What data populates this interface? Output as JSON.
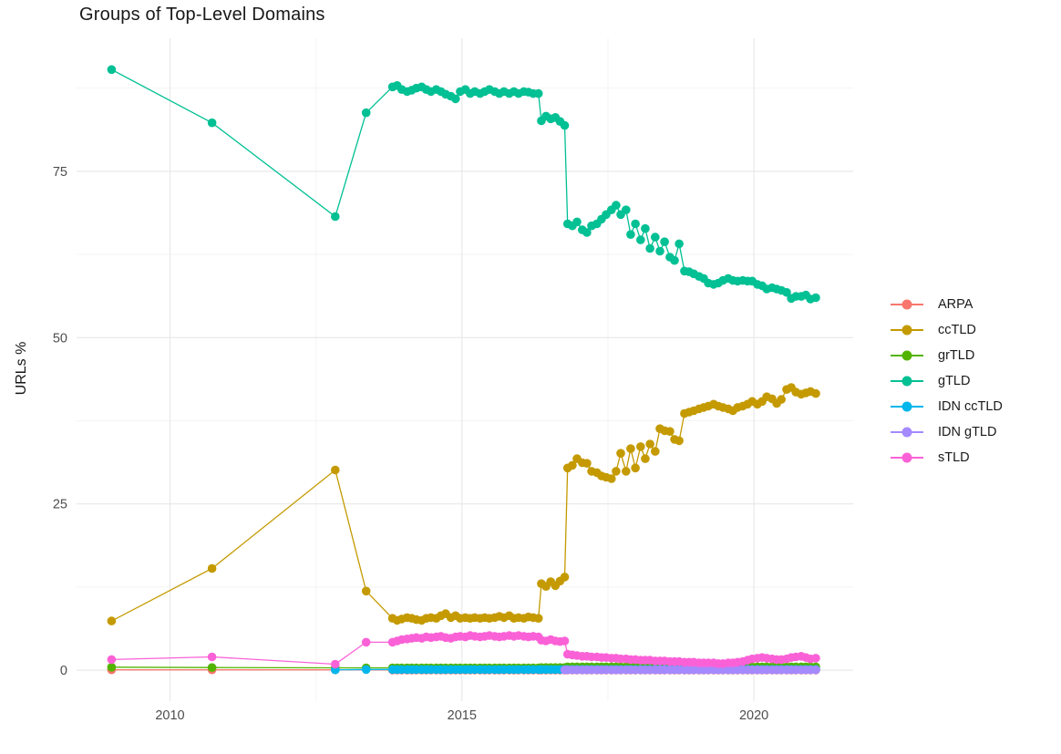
{
  "chart_data": {
    "type": "line",
    "title": "Groups of Top-Level Domains",
    "xlabel": "",
    "ylabel": "URLs %",
    "grid": true,
    "legend_position": "right",
    "xlim": [
      2008.4,
      2021.7
    ],
    "ylim": [
      -4.65,
      95.0
    ],
    "x_ticks": {
      "values": [
        2010,
        2015,
        2020
      ],
      "labels": [
        "2010",
        "2015",
        "2020"
      ]
    },
    "x_minor": [
      2012.5,
      2017.5
    ],
    "y_ticks": {
      "values": [
        0,
        25,
        50,
        75
      ],
      "labels": [
        "0",
        "25",
        "50",
        "75"
      ]
    },
    "y_minor": [
      12.5,
      37.5,
      62.5,
      87.5
    ],
    "colors": {
      "grid_major": "#e7e7e7",
      "grid_minor": "#f3f3f3",
      "axis_text": "#4d4d4d",
      "title_text": "#181818"
    },
    "sample_x": {
      "early": [
        2013.81,
        2013.89,
        2013.97,
        2014.06,
        2014.14,
        2014.22,
        2014.31,
        2014.39,
        2014.47,
        2014.56,
        2014.64,
        2014.72,
        2014.81,
        2014.89,
        2014.97,
        2015.06,
        2015.14,
        2015.22,
        2015.31,
        2015.39,
        2015.47,
        2015.56,
        2015.64,
        2015.72,
        2015.81,
        2015.89,
        2015.97,
        2016.06,
        2016.14,
        2016.22,
        2016.31
      ],
      "mid": [
        2016.36,
        2016.44,
        2016.52,
        2016.6,
        2016.68,
        2016.76
      ],
      "late": [
        2016.81,
        2016.89,
        2016.97,
        2017.06,
        2017.14,
        2017.22,
        2017.31,
        2017.39,
        2017.47,
        2017.56,
        2017.64,
        2017.72,
        2017.81,
        2017.89,
        2017.97,
        2018.06,
        2018.14,
        2018.22,
        2018.31,
        2018.39,
        2018.47,
        2018.56,
        2018.64,
        2018.72,
        2018.81,
        2018.89,
        2018.97,
        2019.06,
        2019.14,
        2019.22,
        2019.31,
        2019.39,
        2019.47,
        2019.56,
        2019.64,
        2019.72,
        2019.81,
        2019.89,
        2019.97,
        2020.06,
        2020.14,
        2020.22,
        2020.31,
        2020.39,
        2020.47,
        2020.56,
        2020.64,
        2020.72,
        2020.81,
        2020.89,
        2020.97,
        2021.06
      ]
    },
    "series": [
      {
        "name": "ARPA",
        "color": "#F8766D",
        "head": [
          [
            2009.0,
            0.05
          ],
          [
            2010.72,
            0.05
          ],
          [
            2012.83,
            0.05
          ]
        ],
        "early": 0.03,
        "mid": 0.03,
        "late": 0.03
      },
      {
        "name": "ccTLD",
        "color": "#C49A00",
        "head": [
          [
            2009.0,
            7.4
          ],
          [
            2010.72,
            15.3
          ],
          [
            2012.83,
            30.1
          ],
          [
            2013.36,
            11.9
          ]
        ],
        "early": [
          7.8,
          7.5,
          7.7,
          7.9,
          7.8,
          7.6,
          7.5,
          7.8,
          7.9,
          7.8,
          8.2,
          8.5,
          7.9,
          8.2,
          7.8,
          7.9,
          7.8,
          7.9,
          7.8,
          7.9,
          7.8,
          7.9,
          8.1,
          7.9,
          8.2,
          7.8,
          7.9,
          7.8,
          8.0,
          7.9,
          7.8
        ],
        "mid": [
          13.0,
          12.6,
          13.3,
          12.7,
          13.4,
          14.0
        ],
        "late": [
          30.4,
          30.8,
          31.8,
          31.2,
          31.1,
          29.9,
          29.7,
          29.2,
          29.0,
          28.8,
          29.9,
          32.6,
          29.9,
          33.3,
          30.4,
          33.6,
          31.8,
          34.0,
          32.9,
          36.3,
          36.0,
          35.9,
          34.7,
          34.5,
          38.6,
          38.8,
          39.0,
          39.3,
          39.5,
          39.7,
          40.0,
          39.7,
          39.5,
          39.3,
          39.0,
          39.5,
          39.7,
          40.0,
          40.4,
          40.0,
          40.4,
          41.1,
          40.8,
          40.1,
          40.7,
          42.2,
          42.5,
          41.8,
          41.5,
          41.7,
          41.9,
          41.6
        ]
      },
      {
        "name": "grTLD",
        "color": "#53B400",
        "head": [
          [
            2009.0,
            0.45
          ],
          [
            2010.72,
            0.4
          ],
          [
            2012.83,
            0.35
          ],
          [
            2013.36,
            0.35
          ]
        ],
        "early": 0.35,
        "mid": 0.4,
        "late": 0.5
      },
      {
        "name": "gTLD",
        "color": "#00C094",
        "head": [
          [
            2009.0,
            90.3
          ],
          [
            2010.72,
            82.3
          ],
          [
            2012.83,
            68.2
          ],
          [
            2013.36,
            83.8
          ]
        ],
        "early": [
          87.7,
          87.9,
          87.3,
          87.0,
          87.2,
          87.5,
          87.7,
          87.3,
          87.0,
          87.3,
          87.0,
          86.6,
          86.3,
          85.9,
          87.0,
          87.3,
          86.7,
          87.0,
          86.7,
          87.0,
          87.3,
          87.0,
          86.7,
          87.0,
          86.7,
          87.0,
          86.7,
          87.0,
          86.9,
          86.7,
          86.7
        ],
        "mid": [
          82.6,
          83.3,
          82.9,
          83.1,
          82.5,
          81.9
        ],
        "late": [
          67.1,
          66.8,
          67.4,
          66.2,
          65.8,
          66.8,
          67.1,
          67.8,
          68.5,
          69.2,
          69.9,
          68.5,
          69.2,
          65.5,
          67.1,
          64.7,
          66.4,
          63.4,
          65.1,
          63.0,
          64.4,
          62.1,
          61.6,
          64.1,
          60.0,
          59.9,
          59.6,
          59.2,
          58.9,
          58.2,
          58.0,
          58.2,
          58.6,
          58.9,
          58.6,
          58.5,
          58.6,
          58.5,
          58.5,
          58.0,
          57.8,
          57.3,
          57.5,
          57.3,
          57.1,
          56.8,
          55.9,
          56.2,
          56.2,
          56.4,
          55.8,
          56.0
        ]
      },
      {
        "name": "IDN ccTLD",
        "color": "#00B6EB",
        "head": [
          [
            2012.83,
            0.05
          ],
          [
            2013.36,
            0.1
          ]
        ],
        "early": 0.1,
        "mid": 0.1,
        "late": 0.12
      },
      {
        "name": "IDN gTLD",
        "color": "#A58AFF",
        "head": [
          [
            2016.76,
            0.05
          ]
        ],
        "early": null,
        "mid": null,
        "late": 0.05
      },
      {
        "name": "sTLD",
        "color": "#FB61D7",
        "head": [
          [
            2009.0,
            1.6
          ],
          [
            2010.72,
            2.0
          ],
          [
            2012.83,
            0.9
          ],
          [
            2013.36,
            4.2
          ]
        ],
        "early": [
          4.2,
          4.4,
          4.6,
          4.7,
          4.8,
          4.9,
          4.8,
          5.0,
          4.9,
          5.0,
          5.1,
          4.9,
          4.8,
          5.0,
          5.1,
          5.0,
          5.2,
          5.1,
          5.0,
          5.1,
          5.2,
          5.1,
          5.0,
          5.1,
          5.2,
          5.1,
          5.2,
          5.1,
          5.0,
          5.1,
          5.0
        ],
        "mid": [
          4.5,
          4.4,
          4.6,
          4.4,
          4.3,
          4.4
        ],
        "late": [
          2.4,
          2.3,
          2.2,
          2.1,
          2.1,
          2.0,
          2.0,
          1.9,
          1.9,
          1.8,
          1.8,
          1.7,
          1.7,
          1.6,
          1.6,
          1.5,
          1.5,
          1.5,
          1.4,
          1.4,
          1.4,
          1.3,
          1.3,
          1.3,
          1.2,
          1.2,
          1.2,
          1.1,
          1.1,
          1.1,
          1.1,
          1.0,
          1.0,
          1.1,
          1.1,
          1.2,
          1.3,
          1.5,
          1.7,
          1.8,
          1.9,
          1.8,
          1.7,
          1.6,
          1.6,
          1.7,
          1.9,
          2.0,
          2.1,
          1.9,
          1.7,
          1.8
        ]
      }
    ]
  }
}
